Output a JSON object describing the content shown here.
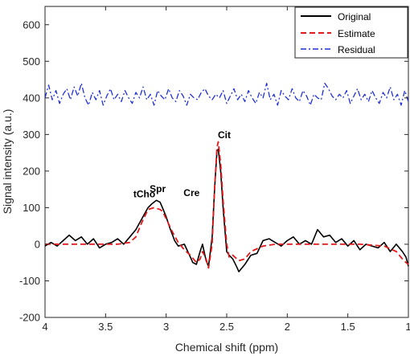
{
  "chart_data": {
    "type": "line",
    "xlabel": "Chemical shift (ppm)",
    "ylabel": "Signal intensity (a.u.)",
    "xlim": [
      4,
      1
    ],
    "xreversed": true,
    "ylim": [
      -200,
      650
    ],
    "xticks": [
      4,
      3.5,
      3,
      2.5,
      2,
      1.5,
      1
    ],
    "xtick_labels": [
      "4",
      "3.5",
      "3",
      "2.5",
      "2",
      "1.5",
      "1"
    ],
    "yticks": [
      -200,
      -100,
      0,
      100,
      200,
      300,
      400,
      500,
      600
    ],
    "ytick_labels": [
      "-200",
      "-100",
      "0",
      "100",
      "200",
      "300",
      "400",
      "500",
      "600"
    ],
    "grid": false,
    "legend_position": "top-right",
    "series": [
      {
        "name": "Original",
        "color": "#000000",
        "style": "solid",
        "x": [
          4.0,
          3.95,
          3.9,
          3.85,
          3.8,
          3.75,
          3.7,
          3.65,
          3.6,
          3.55,
          3.5,
          3.45,
          3.4,
          3.35,
          3.3,
          3.25,
          3.2,
          3.15,
          3.12,
          3.08,
          3.05,
          3.03,
          3.0,
          2.97,
          2.93,
          2.9,
          2.85,
          2.8,
          2.78,
          2.75,
          2.72,
          2.7,
          2.67,
          2.65,
          2.62,
          2.6,
          2.58,
          2.57,
          2.55,
          2.53,
          2.5,
          2.48,
          2.45,
          2.42,
          2.4,
          2.35,
          2.3,
          2.25,
          2.2,
          2.15,
          2.1,
          2.05,
          2.0,
          1.95,
          1.9,
          1.85,
          1.8,
          1.75,
          1.7,
          1.65,
          1.6,
          1.55,
          1.5,
          1.45,
          1.4,
          1.35,
          1.3,
          1.25,
          1.2,
          1.15,
          1.1,
          1.05,
          1.02,
          1.0
        ],
        "y": [
          -5,
          5,
          -5,
          10,
          25,
          10,
          20,
          0,
          15,
          -10,
          0,
          5,
          15,
          0,
          20,
          40,
          70,
          100,
          110,
          120,
          115,
          100,
          75,
          45,
          10,
          -5,
          0,
          -35,
          -50,
          -55,
          -20,
          0,
          -45,
          -60,
          20,
          150,
          255,
          260,
          200,
          100,
          -20,
          -30,
          -40,
          -60,
          -75,
          -55,
          -30,
          -25,
          10,
          15,
          5,
          -5,
          10,
          20,
          0,
          10,
          0,
          40,
          20,
          25,
          5,
          15,
          -5,
          10,
          -15,
          0,
          -5,
          -10,
          5,
          -20,
          0,
          -20,
          -35,
          -60
        ]
      },
      {
        "name": "Estimate",
        "color": "#e31a1c",
        "style": "dashed",
        "x": [
          4.0,
          3.8,
          3.6,
          3.4,
          3.3,
          3.25,
          3.2,
          3.15,
          3.1,
          3.05,
          3.03,
          3.0,
          2.95,
          2.9,
          2.85,
          2.8,
          2.75,
          2.72,
          2.7,
          2.67,
          2.65,
          2.62,
          2.6,
          2.58,
          2.57,
          2.55,
          2.53,
          2.5,
          2.48,
          2.45,
          2.4,
          2.35,
          2.3,
          2.2,
          2.1,
          2.0,
          1.8,
          1.6,
          1.4,
          1.2,
          1.1,
          1.05,
          1.02,
          1.0
        ],
        "y": [
          0,
          0,
          0,
          0,
          5,
          20,
          60,
          95,
          100,
          95,
          90,
          70,
          35,
          5,
          -15,
          -30,
          -50,
          -40,
          -20,
          -40,
          -65,
          0,
          150,
          265,
          280,
          220,
          120,
          0,
          -35,
          -30,
          -45,
          -40,
          -20,
          -5,
          0,
          0,
          0,
          0,
          0,
          -5,
          -20,
          -40,
          -50,
          -55
        ]
      },
      {
        "name": "Residual",
        "color": "#1f2fd6",
        "style": "dashdot",
        "x": [
          4.0,
          3.97,
          3.94,
          3.91,
          3.88,
          3.85,
          3.82,
          3.79,
          3.76,
          3.73,
          3.7,
          3.67,
          3.64,
          3.61,
          3.58,
          3.55,
          3.52,
          3.49,
          3.46,
          3.43,
          3.4,
          3.37,
          3.34,
          3.31,
          3.28,
          3.25,
          3.22,
          3.19,
          3.16,
          3.13,
          3.1,
          3.07,
          3.04,
          3.01,
          2.98,
          2.95,
          2.92,
          2.89,
          2.86,
          2.83,
          2.8,
          2.77,
          2.74,
          2.71,
          2.68,
          2.65,
          2.62,
          2.59,
          2.56,
          2.53,
          2.5,
          2.47,
          2.44,
          2.41,
          2.38,
          2.35,
          2.32,
          2.29,
          2.26,
          2.23,
          2.2,
          2.17,
          2.14,
          2.11,
          2.08,
          2.05,
          2.02,
          1.99,
          1.96,
          1.93,
          1.9,
          1.87,
          1.84,
          1.81,
          1.78,
          1.75,
          1.72,
          1.69,
          1.66,
          1.63,
          1.6,
          1.57,
          1.54,
          1.51,
          1.48,
          1.45,
          1.42,
          1.39,
          1.36,
          1.33,
          1.3,
          1.27,
          1.24,
          1.21,
          1.18,
          1.15,
          1.12,
          1.09,
          1.06,
          1.03,
          1.0
        ],
        "y": [
          400,
          435,
          395,
          420,
          385,
          410,
          425,
          395,
          430,
          405,
          440,
          400,
          380,
          415,
          395,
          420,
          380,
          405,
          425,
          395,
          410,
          390,
          420,
          400,
          385,
          415,
          400,
          430,
          395,
          410,
          380,
          420,
          405,
          395,
          425,
          400,
          390,
          420,
          405,
          380,
          410,
          400,
          395,
          415,
          425,
          405,
          395,
          410,
          400,
          420,
          385,
          405,
          425,
          395,
          410,
          390,
          420,
          400,
          385,
          415,
          400,
          440,
          395,
          410,
          380,
          420,
          405,
          395,
          425,
          400,
          390,
          420,
          405,
          380,
          410,
          400,
          395,
          440,
          425,
          405,
          395,
          410,
          400,
          420,
          385,
          405,
          425,
          395,
          410,
          390,
          420,
          400,
          385,
          415,
          400,
          430,
          395,
          410,
          380,
          420,
          390
        ]
      }
    ],
    "annotations": [
      {
        "text": "tCho",
        "x": 3.18,
        "y": 128
      },
      {
        "text": "Spr",
        "x": 3.07,
        "y": 143
      },
      {
        "text": "Cre",
        "x": 2.79,
        "y": 132
      },
      {
        "text": "Cit",
        "x": 2.52,
        "y": 290
      }
    ]
  }
}
